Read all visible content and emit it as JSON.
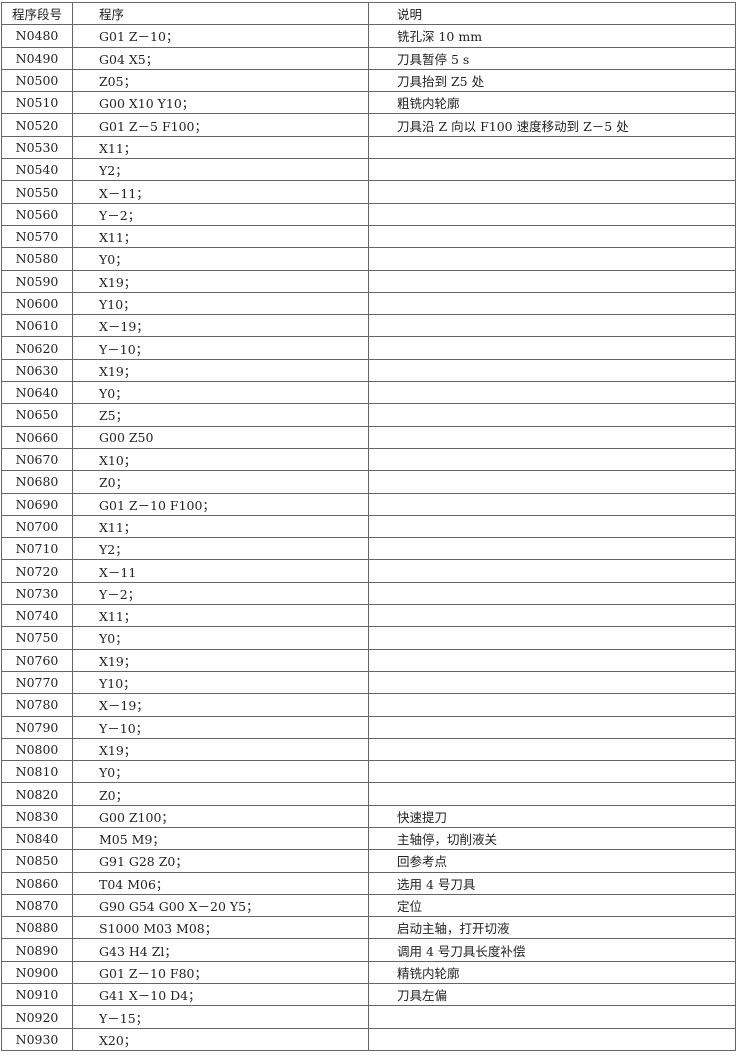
{
  "headers": {
    "seq": "程序段号",
    "program": "程序",
    "note": "说明"
  },
  "rows": [
    [
      "N0480",
      "G01 Z－10；",
      "铣孔深 10 mm"
    ],
    [
      "N0490",
      "G04 X5；",
      "刀具暂停 5 s"
    ],
    [
      "N0500",
      "Z05；",
      "刀具抬到 Z5 处"
    ],
    [
      "N0510",
      "G00 X10 Y10；",
      "粗铣内轮廓"
    ],
    [
      "N0520",
      "G01 Z－5 F100；",
      "刀具沿 Z 向以 F100 速度移动到 Z－5 处"
    ],
    [
      "N0530",
      "X11；",
      ""
    ],
    [
      "N0540",
      "Y2；",
      ""
    ],
    [
      "N0550",
      "X－11；",
      ""
    ],
    [
      "N0560",
      "Y－2；",
      ""
    ],
    [
      "N0570",
      "X11；",
      ""
    ],
    [
      "N0580",
      "Y0；",
      ""
    ],
    [
      "N0590",
      "X19；",
      ""
    ],
    [
      "N0600",
      "Y10；",
      ""
    ],
    [
      "N0610",
      "X－19；",
      ""
    ],
    [
      "N0620",
      "Y－10；",
      ""
    ],
    [
      "N0630",
      "X19；",
      ""
    ],
    [
      "N0640",
      "Y0；",
      ""
    ],
    [
      "N0650",
      "Z5；",
      ""
    ],
    [
      "N0660",
      "G00 Z50",
      ""
    ],
    [
      "N0670",
      "X10；",
      ""
    ],
    [
      "N0680",
      "Z0；",
      ""
    ],
    [
      "N0690",
      "G01 Z－10 F100；",
      ""
    ],
    [
      "N0700",
      "X11；",
      ""
    ],
    [
      "N0710",
      "Y2；",
      ""
    ],
    [
      "N0720",
      "X－11",
      ""
    ],
    [
      "N0730",
      "Y－2；",
      ""
    ],
    [
      "N0740",
      "X11；",
      ""
    ],
    [
      "N0750",
      "Y0；",
      ""
    ],
    [
      "N0760",
      "X19；",
      ""
    ],
    [
      "N0770",
      "Y10；",
      ""
    ],
    [
      "N0780",
      "X－19；",
      ""
    ],
    [
      "N0790",
      "Y－10；",
      ""
    ],
    [
      "N0800",
      "X19；",
      ""
    ],
    [
      "N0810",
      "Y0；",
      ""
    ],
    [
      "N0820",
      "Z0；",
      ""
    ],
    [
      "N0830",
      "G00 Z100；",
      "快速提刀"
    ],
    [
      "N0840",
      "M05 M9；",
      "主轴停，切削液关"
    ],
    [
      "N0850",
      "G91 G28 Z0；",
      "回参考点"
    ],
    [
      "N0860",
      "T04 M06；",
      "选用 4 号刀具"
    ],
    [
      "N0870",
      "G90 G54 G00 X－20 Y5；",
      "定位"
    ],
    [
      "N0880",
      "S1000 M03 M08；",
      "启动主轴，打开切液"
    ],
    [
      "N0890",
      "G43 H4 Zl；",
      "调用 4 号刀具长度补偿"
    ],
    [
      "N0900",
      "G01 Z－10 F80；",
      "精铣内轮廓"
    ],
    [
      "N0910",
      "G41 X－10 D4；",
      "刀具左偏"
    ],
    [
      "N0920",
      "Y－15；",
      ""
    ],
    [
      "N0930",
      "X20；",
      ""
    ]
  ]
}
